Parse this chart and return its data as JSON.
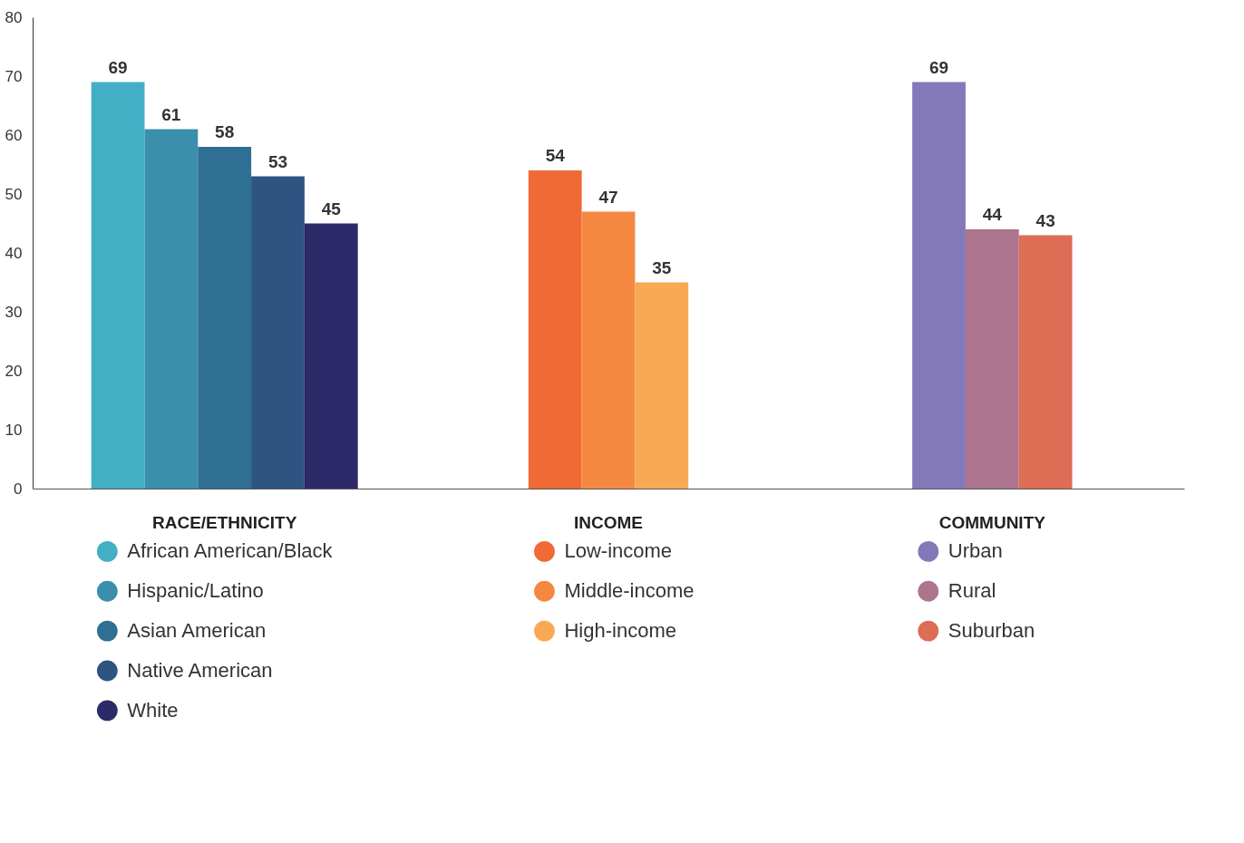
{
  "chart_data": {
    "type": "bar",
    "categories": [
      "RACE/ETHNICITY",
      "INCOME",
      "COMMUNITY"
    ],
    "series": [
      {
        "name": "African American/Black",
        "color": "#42afc4",
        "values": [
          69,
          null,
          null
        ]
      },
      {
        "name": "Hispanic/Latino",
        "color": "#3a8fad",
        "values": [
          61,
          null,
          null
        ]
      },
      {
        "name": "Asian American",
        "color": "#2f6f93",
        "values": [
          58,
          null,
          null
        ]
      },
      {
        "name": "Native American",
        "color": "#2e5482",
        "values": [
          53,
          null,
          null
        ]
      },
      {
        "name": "White",
        "color": "#2c2a68",
        "values": [
          45,
          null,
          null
        ]
      },
      {
        "name": "Low-income",
        "color": "#f06a35",
        "values": [
          null,
          54,
          null
        ]
      },
      {
        "name": "Middle-income",
        "color": "#f58841",
        "values": [
          null,
          47,
          null
        ]
      },
      {
        "name": "High-income",
        "color": "#f9a854",
        "values": [
          null,
          35,
          null
        ]
      },
      {
        "name": "Urban",
        "color": "#8479b8",
        "values": [
          null,
          null,
          69
        ]
      },
      {
        "name": "Rural",
        "color": "#ad748e",
        "values": [
          null,
          null,
          44
        ]
      },
      {
        "name": "Suburban",
        "color": "#dd6d55",
        "values": [
          null,
          null,
          43
        ]
      }
    ],
    "ylim": [
      0,
      80
    ],
    "yticks": [
      0,
      10,
      20,
      30,
      40,
      50,
      60,
      70,
      80
    ],
    "grid": false,
    "data_labels": true,
    "legend": "bottom"
  }
}
